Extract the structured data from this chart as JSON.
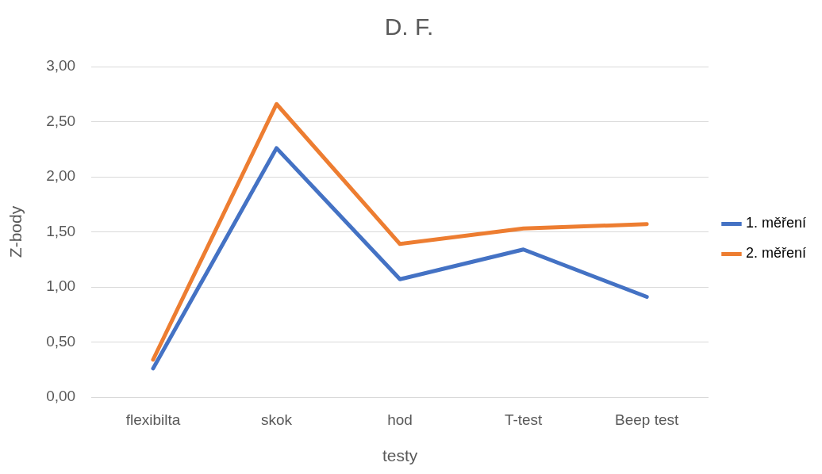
{
  "chart_data": {
    "type": "line",
    "title": "D. F.",
    "xlabel": "testy",
    "ylabel": "Z-body",
    "categories": [
      "flexibilta",
      "skok",
      "hod",
      "T-test",
      "Beep test"
    ],
    "series": [
      {
        "name": "1. měření",
        "color": "#4472c4",
        "values": [
          0.26,
          2.26,
          1.07,
          1.34,
          0.91
        ]
      },
      {
        "name": "2. měření",
        "color": "#ed7d31",
        "values": [
          0.34,
          2.66,
          1.39,
          1.53,
          1.57
        ]
      }
    ],
    "ylim": [
      0,
      3
    ],
    "yticks": [
      {
        "value": 0,
        "label": "0,00"
      },
      {
        "value": 0.5,
        "label": "0,50"
      },
      {
        "value": 1,
        "label": "1,00"
      },
      {
        "value": 1.5,
        "label": "1,50"
      },
      {
        "value": 2,
        "label": "2,00"
      },
      {
        "value": 2.5,
        "label": "2,50"
      },
      {
        "value": 3,
        "label": "3,00"
      }
    ],
    "grid": "y",
    "legend": "right",
    "marker": "none",
    "line_style": "solid"
  }
}
